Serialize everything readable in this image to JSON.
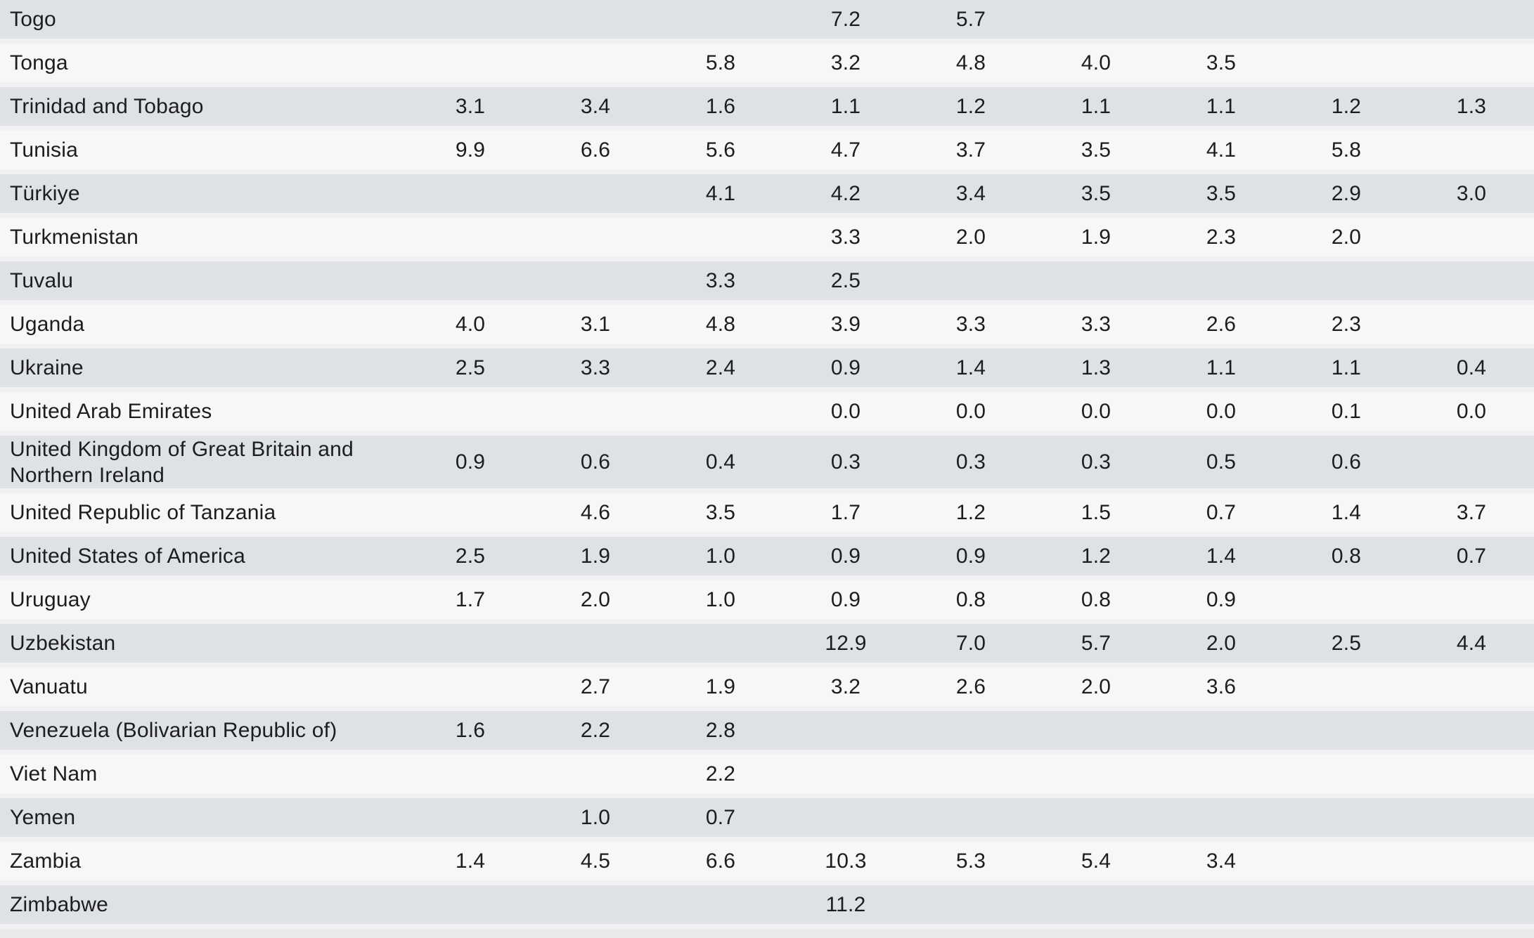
{
  "table": {
    "value_column_count": 9,
    "rows": [
      {
        "country": "Togo",
        "values": [
          "",
          "",
          "",
          "7.2",
          "5.7",
          "",
          "",
          "",
          ""
        ]
      },
      {
        "country": "Tonga",
        "values": [
          "",
          "",
          "5.8",
          "3.2",
          "4.8",
          "4.0",
          "3.5",
          "",
          ""
        ]
      },
      {
        "country": "Trinidad and Tobago",
        "values": [
          "3.1",
          "3.4",
          "1.6",
          "1.1",
          "1.2",
          "1.1",
          "1.1",
          "1.2",
          "1.3"
        ]
      },
      {
        "country": "Tunisia",
        "values": [
          "9.9",
          "6.6",
          "5.6",
          "4.7",
          "3.7",
          "3.5",
          "4.1",
          "5.8",
          ""
        ]
      },
      {
        "country": "Türkiye",
        "values": [
          "",
          "",
          "4.1",
          "4.2",
          "3.4",
          "3.5",
          "3.5",
          "2.9",
          "3.0"
        ]
      },
      {
        "country": "Turkmenistan",
        "values": [
          "",
          "",
          "",
          "3.3",
          "2.0",
          "1.9",
          "2.3",
          "2.0",
          ""
        ]
      },
      {
        "country": "Tuvalu",
        "values": [
          "",
          "",
          "3.3",
          "2.5",
          "",
          "",
          "",
          "",
          ""
        ]
      },
      {
        "country": "Uganda",
        "values": [
          "4.0",
          "3.1",
          "4.8",
          "3.9",
          "3.3",
          "3.3",
          "2.6",
          "2.3",
          ""
        ]
      },
      {
        "country": "Ukraine",
        "values": [
          "2.5",
          "3.3",
          "2.4",
          "0.9",
          "1.4",
          "1.3",
          "1.1",
          "1.1",
          "0.4"
        ]
      },
      {
        "country": "United Arab Emirates",
        "values": [
          "",
          "",
          "",
          "0.0",
          "0.0",
          "0.0",
          "0.0",
          "0.1",
          "0.0"
        ]
      },
      {
        "country": "United Kingdom of Great Britain and Northern Ireland",
        "values": [
          "0.9",
          "0.6",
          "0.4",
          "0.3",
          "0.3",
          "0.3",
          "0.5",
          "0.6",
          ""
        ]
      },
      {
        "country": "United Republic of Tanzania",
        "values": [
          "",
          "4.6",
          "3.5",
          "1.7",
          "1.2",
          "1.5",
          "0.7",
          "1.4",
          "3.7"
        ]
      },
      {
        "country": "United States of America",
        "values": [
          "2.5",
          "1.9",
          "1.0",
          "0.9",
          "0.9",
          "1.2",
          "1.4",
          "0.8",
          "0.7"
        ]
      },
      {
        "country": "Uruguay",
        "values": [
          "1.7",
          "2.0",
          "1.0",
          "0.9",
          "0.8",
          "0.8",
          "0.9",
          "",
          ""
        ]
      },
      {
        "country": "Uzbekistan",
        "values": [
          "",
          "",
          "",
          "12.9",
          "7.0",
          "5.7",
          "2.0",
          "2.5",
          "4.4"
        ]
      },
      {
        "country": "Vanuatu",
        "values": [
          "",
          "2.7",
          "1.9",
          "3.2",
          "2.6",
          "2.0",
          "3.6",
          "",
          ""
        ]
      },
      {
        "country": "Venezuela (Bolivarian Republic of)",
        "values": [
          "1.6",
          "2.2",
          "2.8",
          "",
          "",
          "",
          "",
          "",
          ""
        ]
      },
      {
        "country": "Viet Nam",
        "values": [
          "",
          "",
          "2.2",
          "",
          "",
          "",
          "",
          "",
          ""
        ]
      },
      {
        "country": "Yemen",
        "values": [
          "",
          "1.0",
          "0.7",
          "",
          "",
          "",
          "",
          "",
          ""
        ]
      },
      {
        "country": "Zambia",
        "values": [
          "1.4",
          "4.5",
          "6.6",
          "10.3",
          "5.3",
          "5.4",
          "3.4",
          "",
          ""
        ]
      },
      {
        "country": "Zimbabwe",
        "values": [
          "",
          "",
          "",
          "11.2",
          "",
          "",
          "",
          "",
          ""
        ]
      }
    ],
    "colors": {
      "row_shaded": "#dfe2e5",
      "row_plain": "#f7f7f8",
      "separator": "#f1f0f3",
      "text": "#1d1d1f"
    }
  }
}
